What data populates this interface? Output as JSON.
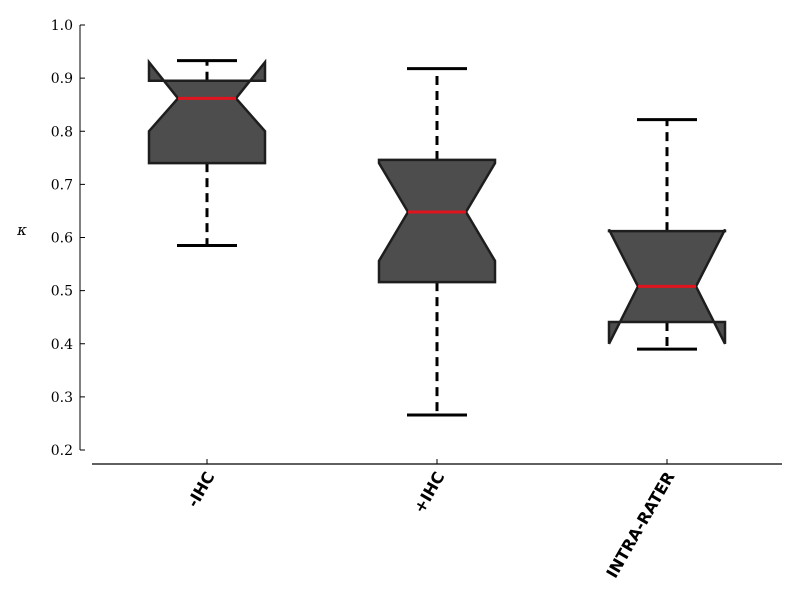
{
  "chart_data": {
    "type": "boxplot",
    "notched": true,
    "ylabel": "κ",
    "xlabel": "",
    "title": "",
    "ylim": [
      0.2,
      1.0
    ],
    "yticks": [
      0.2,
      0.3,
      0.4,
      0.5,
      0.6,
      0.7,
      0.8,
      0.9,
      1.0
    ],
    "ytick_labels": [
      "0.2",
      "0.3",
      "0.4",
      "0.5",
      "0.6",
      "0.7",
      "0.8",
      "0.9",
      "1.0"
    ],
    "categories": [
      "-IHC",
      "+IHC",
      "INTRA-RATER"
    ],
    "boxes": [
      {
        "category": "-IHC",
        "whisker_low": 0.585,
        "q1": 0.74,
        "median": 0.862,
        "q3": 0.895,
        "whisker_high": 0.933,
        "notch_low": 0.8,
        "notch_high": 0.93
      },
      {
        "category": "+IHC",
        "whisker_low": 0.266,
        "q1": 0.516,
        "median": 0.648,
        "q3": 0.746,
        "whisker_high": 0.918,
        "notch_low": 0.556,
        "notch_high": 0.74
      },
      {
        "category": "INTRA-RATER",
        "whisker_low": 0.39,
        "q1": 0.441,
        "median": 0.508,
        "q3": 0.612,
        "whisker_high": 0.822,
        "notch_low": 0.4,
        "notch_high": 0.615
      }
    ],
    "colors": {
      "box_fill": "#4d4d4d",
      "box_edge": "#1e1e1e",
      "median": "#e0141e",
      "whisker": "#000000"
    },
    "grid": false,
    "legend": "none"
  }
}
